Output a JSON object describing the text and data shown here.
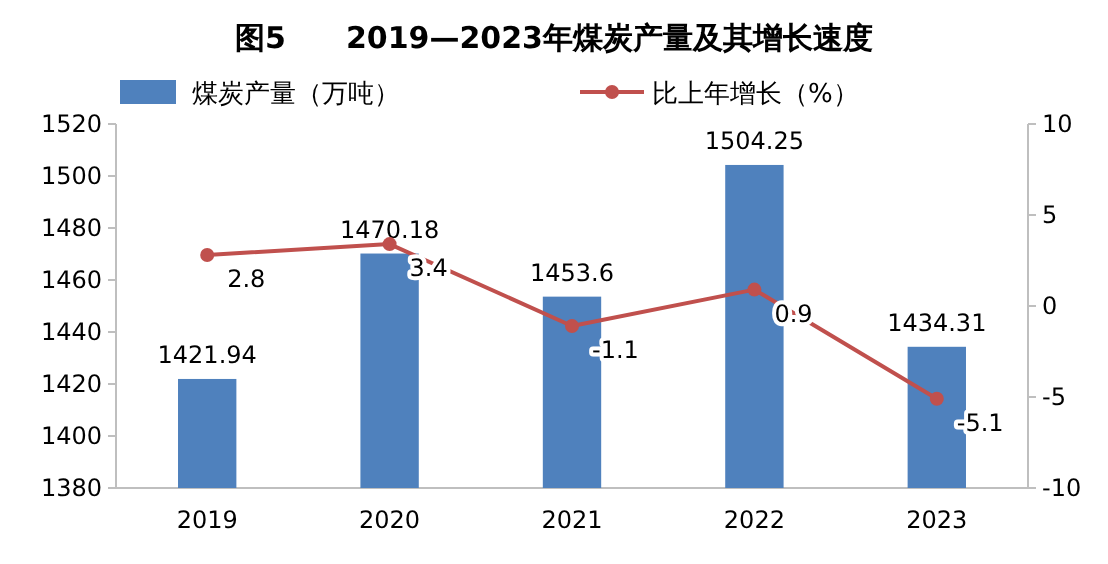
{
  "chart_data": {
    "type": "bar",
    "title": "图5　　2019—2023年煤炭产量及其增长速度",
    "categories": [
      "2019",
      "2020",
      "2021",
      "2022",
      "2023"
    ],
    "series": [
      {
        "name": "煤炭产量（万吨）",
        "color": "#4f81bd",
        "values": [
          1421.94,
          1470.18,
          1453.6,
          1504.25,
          1434.31
        ]
      },
      {
        "name": "比上年增长（%）",
        "type": "line",
        "axis": "y2",
        "color": "#c0504d",
        "values": [
          2.8,
          3.4,
          -1.1,
          0.9,
          -5.1
        ]
      }
    ],
    "ylim": [
      1380,
      1520
    ],
    "yticks": [
      1380,
      1400,
      1420,
      1440,
      1460,
      1480,
      1500,
      1520
    ],
    "y2lim": [
      -10,
      10
    ],
    "y2ticks": [
      -10,
      -5,
      0,
      5,
      10
    ],
    "data_labels": true,
    "legend": "top",
    "marker": "circle",
    "line_style": "solid",
    "grid": false
  }
}
